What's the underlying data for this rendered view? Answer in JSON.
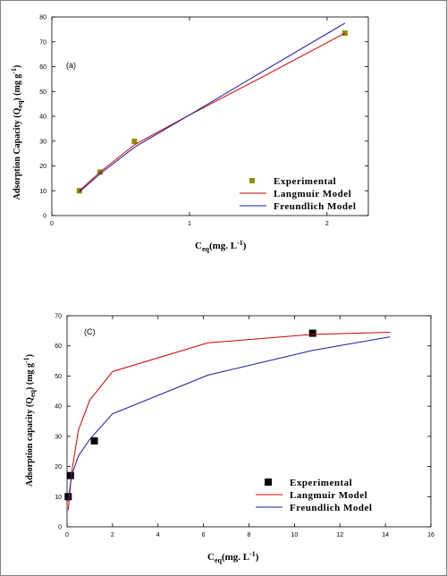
{
  "colors": {
    "experimental_a": "#8f8f00",
    "experimental_c": "#000000",
    "langmuir": "#cc0000",
    "freundlich": "#1a1aa6",
    "axis": "#000000"
  },
  "chart_data": [
    {
      "type": "line",
      "panel_label": "(a)",
      "xlim": [
        0,
        2.3
      ],
      "ylim": [
        0,
        80
      ],
      "xticks": [
        0,
        1,
        2
      ],
      "yticks": [
        0,
        10,
        20,
        30,
        40,
        50,
        60,
        70,
        80
      ],
      "xlabel": {
        "main": "C",
        "sub": "eq",
        "rest": "(mg. L",
        "sup": "-1",
        "close": ")"
      },
      "ylabel": {
        "main": "Adsorption Capacity (Q",
        "sub": "eq",
        "rest": ") (mg g",
        "sup": "-1",
        "close": ")"
      },
      "legend_position": "bottom-right",
      "series": [
        {
          "name": "Experimental",
          "kind": "points",
          "x": [
            0.2,
            0.35,
            0.6,
            2.13
          ],
          "y": [
            10,
            17.5,
            29.9,
            73.5
          ]
        },
        {
          "name": "Langmuir Model",
          "kind": "line",
          "x": [
            0.2,
            0.35,
            0.6,
            1.0,
            1.5,
            2.13
          ],
          "y": [
            10,
            17.5,
            28.5,
            40.5,
            55,
            73.5
          ]
        },
        {
          "name": "Freundlich Model",
          "kind": "line",
          "x": [
            0.2,
            0.35,
            0.6,
            1.0,
            1.5,
            2.13
          ],
          "y": [
            9.5,
            16.8,
            27.5,
            40.5,
            57,
            77.5
          ]
        }
      ]
    },
    {
      "type": "line",
      "panel_label": "(C)",
      "xlim": [
        0,
        16
      ],
      "ylim": [
        0,
        70
      ],
      "xticks": [
        0,
        2,
        4,
        6,
        8,
        10,
        12,
        14,
        16
      ],
      "yticks": [
        0,
        10,
        20,
        30,
        40,
        50,
        60,
        70
      ],
      "xlabel": {
        "main": "C",
        "sub": "eq",
        "rest": "(mg. L",
        "sup": "-1",
        "close": ")"
      },
      "ylabel": {
        "main": "Adsorption capacity (Q",
        "sub": "eq",
        "rest": ") (mg g",
        "sup": "-1",
        "close": ")"
      },
      "legend_position": "bottom-right",
      "series": [
        {
          "name": "Experimental",
          "kind": "points",
          "x": [
            0.05,
            0.15,
            1.2,
            10.8
          ],
          "y": [
            10,
            17,
            28.5,
            64.2
          ]
        },
        {
          "name": "Langmuir Model",
          "kind": "line",
          "x": [
            0.05,
            0.2,
            0.5,
            1.0,
            2.0,
            6.2,
            10.8,
            14.2
          ],
          "y": [
            5.5,
            18,
            32,
            42,
            51.5,
            61,
            63.8,
            64.5
          ]
        },
        {
          "name": "Freundlich Model",
          "kind": "line",
          "x": [
            0.05,
            0.2,
            0.5,
            1.0,
            2.0,
            6.2,
            10.8,
            14.2
          ],
          "y": [
            8.5,
            17,
            23.5,
            29,
            37.5,
            50.3,
            58.5,
            63
          ]
        }
      ]
    }
  ]
}
